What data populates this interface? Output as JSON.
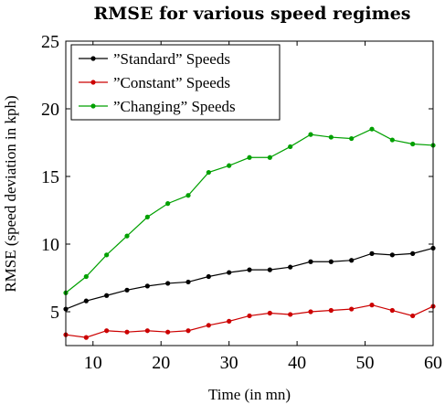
{
  "chart_data": {
    "type": "line",
    "title": "RMSE for various speed regimes",
    "xlabel": "Time (in mn)",
    "ylabel": "RMSE (speed deviation in kph)",
    "xlim": [
      6,
      60
    ],
    "ylim": [
      2.5,
      25
    ],
    "xticks": [
      10,
      20,
      30,
      40,
      50,
      60
    ],
    "yticks": [
      5,
      10,
      15,
      20,
      25
    ],
    "grid": false,
    "legend_position": "top-left",
    "x": [
      6,
      9,
      12,
      15,
      18,
      21,
      24,
      27,
      30,
      33,
      36,
      39,
      42,
      45,
      48,
      51,
      54,
      57,
      60
    ],
    "series": [
      {
        "name": "”Standard” Speeds",
        "color": "#000000",
        "values": [
          5.2,
          5.8,
          6.2,
          6.6,
          6.9,
          7.1,
          7.2,
          7.6,
          7.9,
          8.1,
          8.1,
          8.3,
          8.7,
          8.7,
          8.8,
          9.3,
          9.2,
          9.3,
          9.7
        ]
      },
      {
        "name": "”Constant” Speeds",
        "color": "#cc0000",
        "values": [
          3.3,
          3.1,
          3.6,
          3.5,
          3.6,
          3.5,
          3.6,
          4.0,
          4.3,
          4.7,
          4.9,
          4.8,
          5.0,
          5.1,
          5.2,
          5.5,
          5.1,
          4.7,
          5.4
        ]
      },
      {
        "name": "”Changing” Speeds",
        "color": "#00a000",
        "values": [
          6.4,
          7.6,
          9.2,
          10.6,
          12.0,
          13.0,
          13.6,
          15.3,
          15.8,
          16.4,
          16.4,
          17.2,
          18.1,
          17.9,
          17.8,
          18.5,
          17.7,
          17.4,
          17.3
        ]
      }
    ]
  }
}
